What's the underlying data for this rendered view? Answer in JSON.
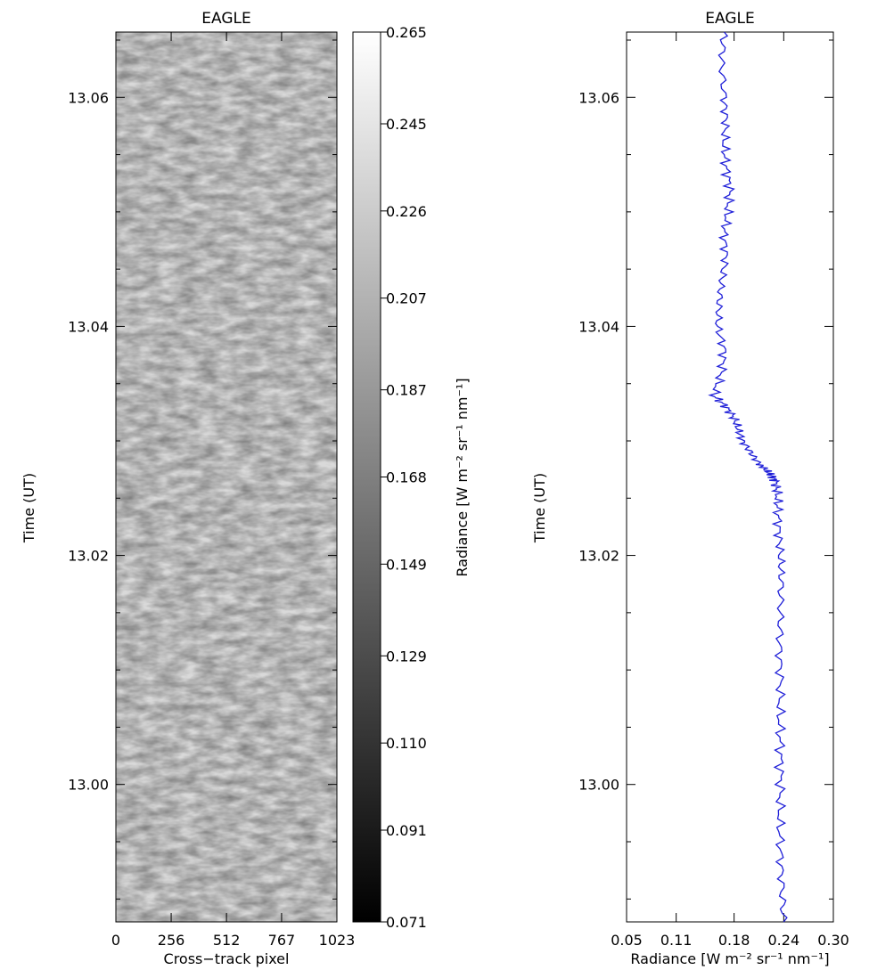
{
  "chart_data": [
    {
      "type": "heatmap",
      "title": "EAGLE",
      "xlabel": "Cross−track pixel",
      "ylabel": "Time (UT)",
      "xlim": [
        0,
        1023
      ],
      "ylim": [
        12.988,
        13.0657
      ],
      "x_ticks": [
        "0",
        "256",
        "512",
        "767",
        "1023"
      ],
      "y_ticks": [
        "13.00",
        "13.02",
        "13.04",
        "13.06"
      ],
      "colormap": "grayscale",
      "colorbar": {
        "label": "Radiance [W m⁻² sr⁻¹ nm⁻¹]",
        "range": [
          0.071,
          0.265
        ],
        "ticks": [
          "0.265",
          "0.245",
          "0.226",
          "0.207",
          "0.187",
          "0.168",
          "0.149",
          "0.129",
          "0.110",
          "0.091",
          "0.071"
        ]
      },
      "value_profile": {
        "time": [
          12.988,
          12.995,
          13.0,
          13.005,
          13.01,
          13.015,
          13.02,
          13.024,
          13.0265,
          13.028,
          13.03,
          13.034,
          13.038,
          13.042,
          13.046,
          13.05,
          13.055,
          13.06,
          13.0657
        ],
        "mean_radiance": [
          0.236,
          0.235,
          0.234,
          0.235,
          0.236,
          0.235,
          0.233,
          0.226,
          0.21,
          0.195,
          0.18,
          0.168,
          0.16,
          0.158,
          0.162,
          0.163,
          0.162,
          0.16,
          0.16
        ]
      }
    },
    {
      "type": "line",
      "title": "EAGLE",
      "xlabel": "Radiance [W m⁻² sr⁻¹ nm⁻¹]",
      "ylabel": "Time (UT)",
      "xlim": [
        0.05,
        0.3
      ],
      "ylim": [
        12.988,
        13.0657
      ],
      "x_ticks": [
        "0.05",
        "0.11",
        "0.18",
        "0.24",
        "0.30"
      ],
      "y_ticks": [
        "13.00",
        "13.02",
        "13.04",
        "13.06"
      ],
      "series": [
        {
          "color": "#1f1fd8",
          "x": [
            0.24,
            0.238,
            0.236,
            0.235,
            0.236,
            0.236,
            0.235,
            0.236,
            0.235,
            0.236,
            0.237,
            0.236,
            0.234,
            0.233,
            0.232,
            0.23,
            0.225,
            0.218,
            0.21,
            0.2,
            0.19,
            0.185,
            0.18,
            0.17,
            0.155,
            0.165,
            0.168,
            0.16,
            0.162,
            0.165,
            0.17,
            0.168,
            0.172,
            0.175,
            0.17,
            0.168,
            0.17,
            0.168,
            0.165,
            0.168
          ],
          "y": [
            12.988,
            12.991,
            12.994,
            12.997,
            13.0,
            13.003,
            13.006,
            13.009,
            13.012,
            13.015,
            13.018,
            13.02,
            13.022,
            13.024,
            13.0255,
            13.0265,
            13.027,
            13.0275,
            13.028,
            13.029,
            13.03,
            13.031,
            13.032,
            13.033,
            13.034,
            13.036,
            13.038,
            13.04,
            13.042,
            13.044,
            13.046,
            13.048,
            13.05,
            13.052,
            13.054,
            13.056,
            13.058,
            13.06,
            13.063,
            13.0657
          ]
        }
      ]
    }
  ]
}
